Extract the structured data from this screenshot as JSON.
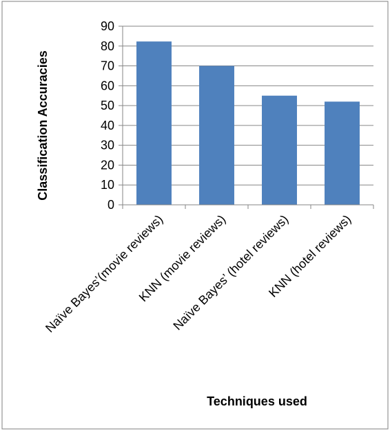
{
  "chart_data": {
    "type": "bar",
    "title": "",
    "xlabel": "Techniques used",
    "ylabel": "Classification Accuracies",
    "categories": [
      "Naïve Bayes’(movie reviews)",
      "KNN (movie reviews)",
      "Naïve Bayes’ (hotel reviews)",
      "KNN (hotel reviews)"
    ],
    "values": [
      82.3,
      70,
      55,
      52
    ],
    "ylim": [
      0,
      90
    ],
    "yticks": [
      "0",
      "10",
      "20",
      "30",
      "40",
      "50",
      "60",
      "70",
      "80",
      "90"
    ],
    "grid": true,
    "legend": "none",
    "bar_color": "#4F81BD",
    "grid_color": "#868686",
    "border_color": "#7F7F7F"
  }
}
